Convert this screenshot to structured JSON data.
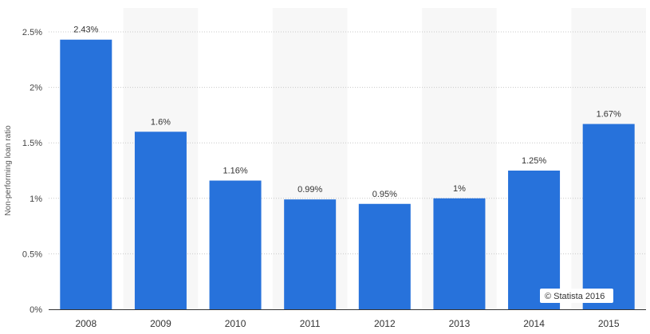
{
  "chart_data": {
    "type": "bar",
    "categories": [
      "2008",
      "2009",
      "2010",
      "2011",
      "2012",
      "2013",
      "2014",
      "2015"
    ],
    "values": [
      2.43,
      1.6,
      1.16,
      0.99,
      0.95,
      1.0,
      1.25,
      1.67
    ],
    "data_labels": [
      "2.43%",
      "1.6%",
      "1.16%",
      "0.99%",
      "0.95%",
      "1%",
      "1.25%",
      "1.67%"
    ],
    "ylabel": "Non-performing loan ratio",
    "xlabel": "",
    "title": "",
    "ylim": [
      0,
      2.5
    ],
    "y_ticks": [
      0,
      0.5,
      1,
      1.5,
      2,
      2.5
    ],
    "y_tick_labels": [
      "0%",
      "0.5%",
      "1%",
      "1.5%",
      "2%",
      "2.5%"
    ],
    "grid": true,
    "legend": "none",
    "bar_color": "#2772db",
    "band_color": "#f7f7f7",
    "credit": "© Statista 2016"
  }
}
